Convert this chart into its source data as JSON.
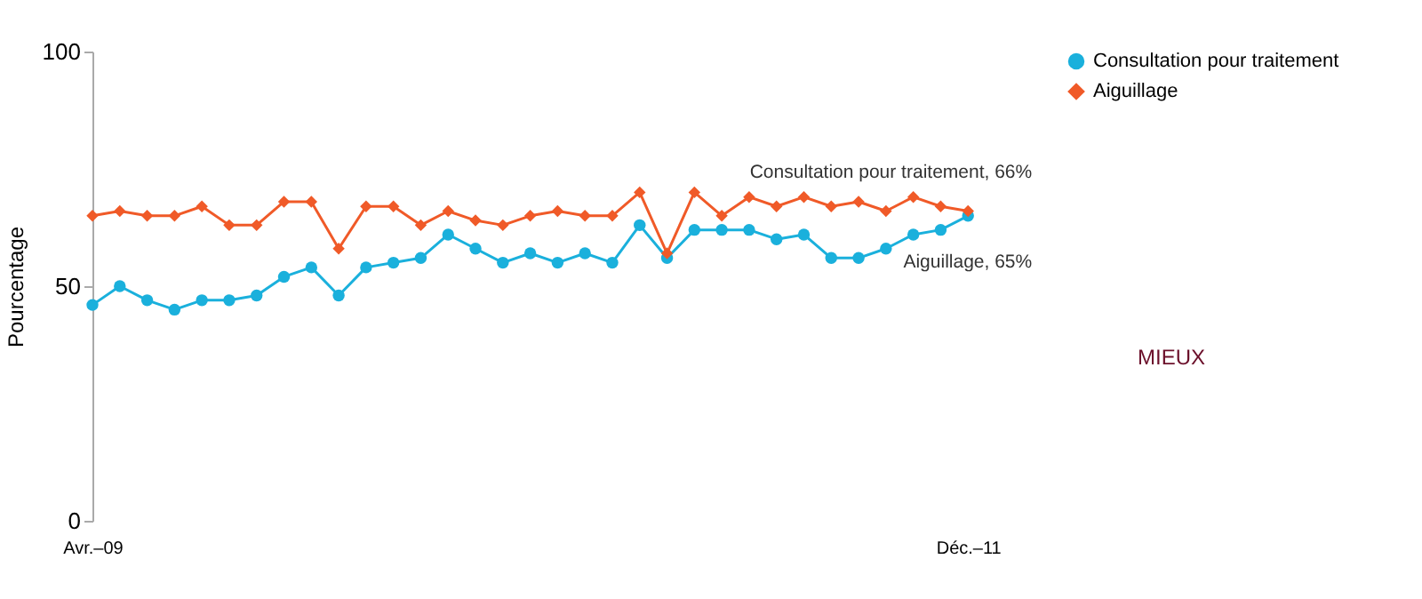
{
  "chart_data": {
    "type": "line",
    "ylabel": "Pourcentage",
    "categories": [
      "Avr.–09",
      null,
      null,
      null,
      null,
      null,
      null,
      null,
      null,
      null,
      null,
      null,
      null,
      null,
      null,
      null,
      null,
      null,
      null,
      null,
      null,
      null,
      null,
      null,
      null,
      null,
      null,
      null,
      null,
      null,
      null,
      null,
      "Déc.–11"
    ],
    "series": [
      {
        "name": "Consultation pour traitement",
        "color": "#1ab0dc",
        "marker": "circle",
        "values": [
          46,
          50,
          47,
          45,
          47,
          47,
          48,
          52,
          54,
          48,
          54,
          55,
          56,
          61,
          58,
          55,
          57,
          55,
          57,
          55,
          63,
          56,
          62,
          62,
          62,
          60,
          61,
          56,
          56,
          58,
          61,
          62,
          65
        ]
      },
      {
        "name": "Aiguillage",
        "color": "#f05a28",
        "marker": "diamond",
        "values": [
          65,
          66,
          65,
          65,
          67,
          63,
          63,
          68,
          68,
          58,
          67,
          67,
          63,
          66,
          64,
          63,
          65,
          66,
          65,
          65,
          70,
          57,
          70,
          65,
          69,
          67,
          69,
          67,
          68,
          66,
          69,
          67,
          66
        ]
      }
    ],
    "ylim": [
      0,
      100
    ],
    "yticks": [
      0,
      50,
      100
    ],
    "grid": false,
    "legend": "top right",
    "annotations": [
      {
        "text": "Consultation pour traitement, 66%",
        "x": "Déc.–11",
        "y": 66
      },
      {
        "text": "Aiguillage, 65%",
        "x": "Déc.–11",
        "y": 65
      },
      "MIEUX"
    ]
  }
}
